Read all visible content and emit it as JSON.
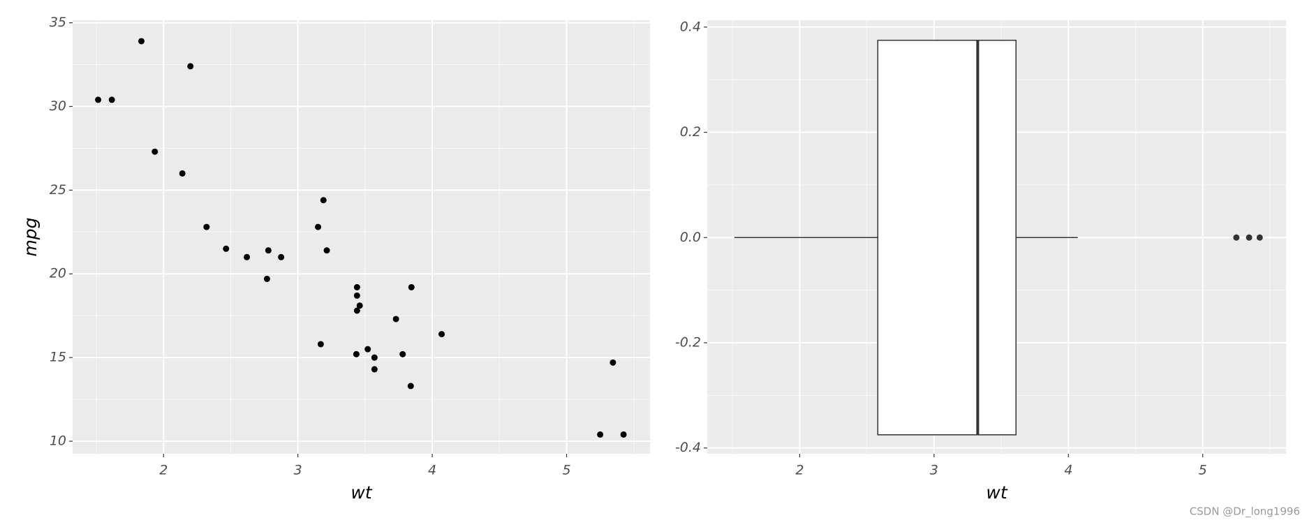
{
  "chart_data": [
    {
      "type": "scatter",
      "xlabel": "wt",
      "ylabel": "mpg",
      "x": [
        2.62,
        2.875,
        2.32,
        3.215,
        3.44,
        3.46,
        3.57,
        3.19,
        3.15,
        3.44,
        3.44,
        4.07,
        3.73,
        3.78,
        5.25,
        5.424,
        5.345,
        2.2,
        1.615,
        1.835,
        2.465,
        3.52,
        3.435,
        3.84,
        3.845,
        1.935,
        2.14,
        1.513,
        3.17,
        2.77,
        3.57,
        2.78
      ],
      "y": [
        21.0,
        21.0,
        22.8,
        21.4,
        18.7,
        18.1,
        14.3,
        24.4,
        22.8,
        19.2,
        17.8,
        16.4,
        17.3,
        15.2,
        10.4,
        10.4,
        14.7,
        32.4,
        30.4,
        33.9,
        21.5,
        15.5,
        15.2,
        13.3,
        19.2,
        27.3,
        26.0,
        30.4,
        15.8,
        19.7,
        15.0,
        21.4
      ],
      "color": "#000000",
      "xlim": [
        1.323,
        5.621
      ],
      "ylim": [
        9.25,
        35.15
      ],
      "xticks": [
        2,
        3,
        4,
        5
      ],
      "yticks": [
        10,
        15,
        20,
        25,
        30,
        35
      ],
      "grid": true
    },
    {
      "type": "boxplot",
      "xlabel": "wt",
      "stats": {
        "min": 1.513,
        "q1": 2.58125,
        "median": 3.325,
        "q3": 3.61,
        "max": 4.07
      },
      "outliers": [
        5.25,
        5.345,
        5.424
      ],
      "color": "#333333",
      "xlim": [
        1.312,
        5.62
      ],
      "ylim": [
        -0.411,
        0.413
      ],
      "xticks": [
        2,
        3,
        4,
        5
      ],
      "yticks": [
        {
          "value": -0.4,
          "label": "-0.4"
        },
        -0.2,
        {
          "value": 0.0,
          "label": "0.0"
        },
        0.2,
        0.4
      ],
      "grid": true
    }
  ],
  "watermark": "CSDN @Dr_long1996"
}
